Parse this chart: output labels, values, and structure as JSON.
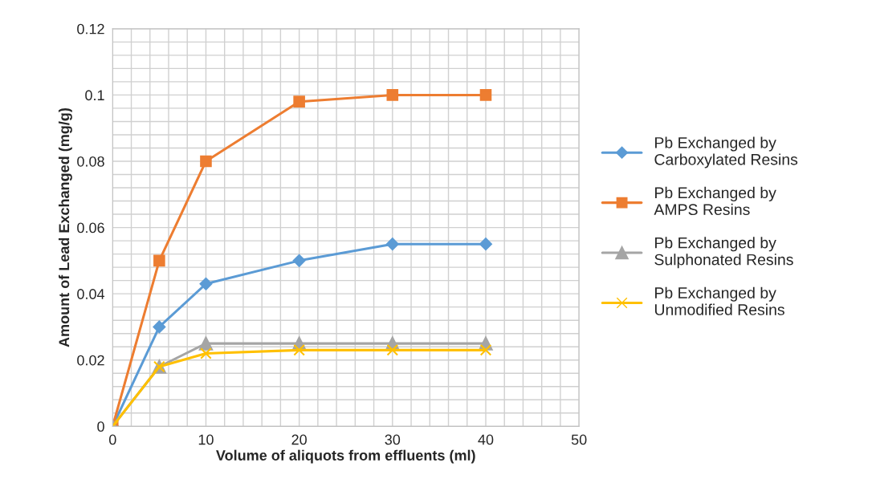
{
  "chart_data": {
    "type": "line",
    "xlabel": "Volume of aliquots from effluents (ml)",
    "ylabel": "Amount of Lead Exchanged (mg/g)",
    "x": [
      0,
      5,
      10,
      20,
      30,
      40
    ],
    "series": [
      {
        "name": "Pb Exchanged by Carboxylated Resins",
        "color": "#5b9bd5",
        "marker": "diamond",
        "values": [
          0,
          0.03,
          0.043,
          0.05,
          0.055,
          0.055
        ]
      },
      {
        "name": "Pb Exchanged by AMPS Resins",
        "color": "#ed7d31",
        "marker": "square",
        "values": [
          0,
          0.05,
          0.08,
          0.098,
          0.1,
          0.1
        ]
      },
      {
        "name": "Pb Exchanged by Sulphonated Resins",
        "color": "#a5a5a5",
        "marker": "triangle",
        "values": [
          0,
          0.018,
          0.025,
          0.025,
          0.025,
          0.025
        ]
      },
      {
        "name": "Pb Exchanged by Unmodified Resins",
        "color": "#ffc000",
        "marker": "cross",
        "values": [
          0,
          0.018,
          0.022,
          0.023,
          0.023,
          0.023
        ]
      }
    ],
    "xlim": [
      0,
      50
    ],
    "xticks": [
      0,
      10,
      20,
      30,
      40,
      50
    ],
    "ylim": [
      0,
      0.12
    ],
    "yticks": [
      0,
      0.02,
      0.04,
      0.06,
      0.08,
      0.1,
      0.12
    ],
    "grid": true,
    "legend": "right",
    "line_style": "solid"
  }
}
